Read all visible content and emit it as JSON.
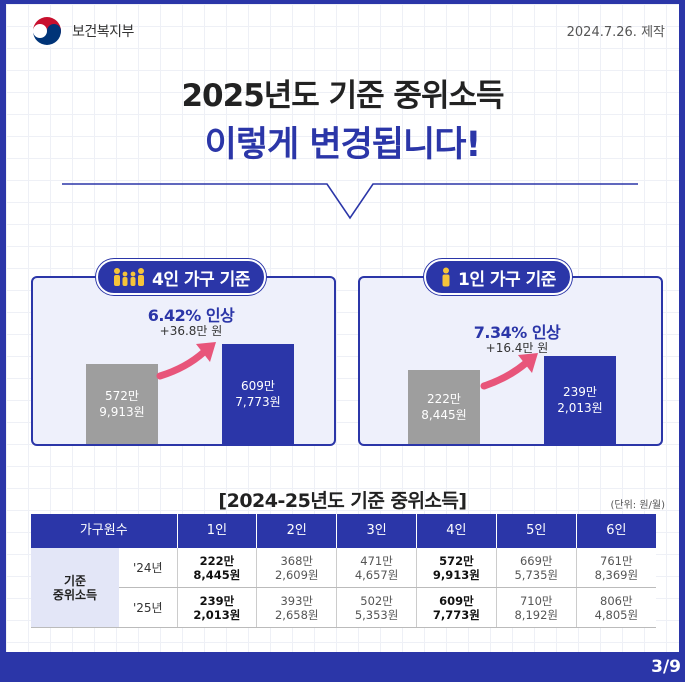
{
  "header": {
    "ministry": "보건복지부",
    "date": "2024.7.26. 제작"
  },
  "title": {
    "line1": "2025년도 기준 중위소득",
    "line2": "이렇게 변경됩니다!"
  },
  "left": {
    "pill": "4인 가구 기준",
    "pct": "6.42% 인상",
    "amount": "+36.8만 원",
    "before": {
      "line1": "572만",
      "line2": "9,913원"
    },
    "after": {
      "line1": "609만",
      "line2": "7,773원"
    },
    "icon": "family-icon"
  },
  "right": {
    "pill": "1인 가구 기준",
    "pct": "7.34% 인상",
    "amount": "+16.4만 원",
    "before": {
      "line1": "222만",
      "line2": "8,445원"
    },
    "after": {
      "line1": "239만",
      "line2": "2,013원"
    },
    "icon": "person-icon"
  },
  "table": {
    "title": "[2024-25년도 기준 중위소득]",
    "unit": "(단위: 원/월)",
    "headers": [
      "가구원수",
      "1인",
      "2인",
      "3인",
      "4인",
      "5인",
      "6인"
    ],
    "row_label_1": "기준",
    "row_label_2": "중위소득",
    "rows": [
      {
        "year": "'24년",
        "cells": [
          [
            "222만",
            "8,445원"
          ],
          [
            "368만",
            "2,609원"
          ],
          [
            "471만",
            "4,657원"
          ],
          [
            "572만",
            "9,913원"
          ],
          [
            "669만",
            "5,735원"
          ],
          [
            "761만",
            "8,369원"
          ]
        ]
      },
      {
        "year": "'25년",
        "cells": [
          [
            "239만",
            "2,013원"
          ],
          [
            "393만",
            "2,658원"
          ],
          [
            "502만",
            "5,353원"
          ],
          [
            "609만",
            "7,773원"
          ],
          [
            "710만",
            "8,192원"
          ],
          [
            "806만",
            "4,805원"
          ]
        ]
      }
    ]
  },
  "pager": "3/9",
  "colors": {
    "brand": "#2b36a8",
    "arrow": "#e8557a",
    "gray_bar": "#9e9e9e"
  }
}
